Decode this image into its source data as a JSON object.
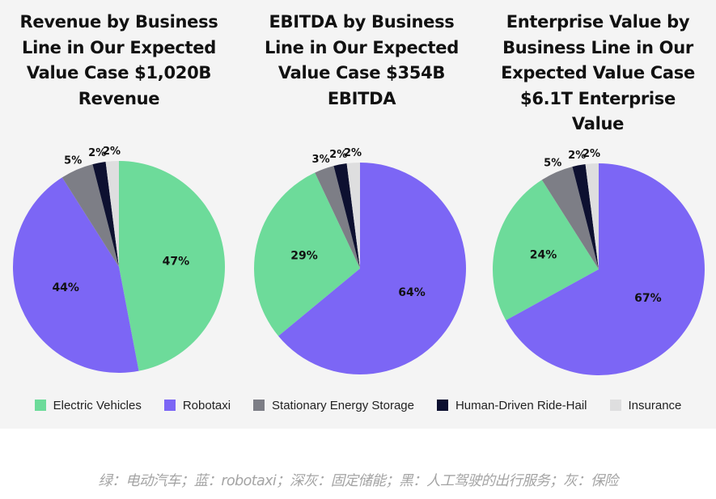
{
  "chart_data": [
    {
      "type": "pie",
      "title": "Revenue by Business Line in Our Expected Value Case $1,020B Revenue",
      "title_lines": [
        "Revenue by Business",
        "Line in Our Expected",
        "Value Case $1,020B",
        "Revenue"
      ],
      "labels": [
        "Electric Vehicles",
        "Robotaxi",
        "Stationary Energy Storage",
        "Human-Driven Ride-Hail",
        "Insurance"
      ],
      "values": [
        47,
        44,
        5,
        2,
        2
      ],
      "value_labels": [
        "47%",
        "44%",
        "5%",
        "2%",
        "2%"
      ]
    },
    {
      "type": "pie",
      "title": "EBITDA by Business Line in Our Expected Value Case $354B EBITDA",
      "title_lines": [
        "EBITDA by Business",
        "Line in Our Expected",
        "Value Case $354B",
        "EBITDA"
      ],
      "labels": [
        "Electric Vehicles",
        "Robotaxi",
        "Stationary Energy Storage",
        "Human-Driven Ride-Hail",
        "Insurance"
      ],
      "values": [
        29,
        64,
        3,
        2,
        2
      ],
      "value_labels": [
        "29%",
        "64%",
        "3%",
        "2%",
        "2%"
      ]
    },
    {
      "type": "pie",
      "title": "Enterprise Value by Business Line in Our Expected Value Case $6.1T Enterprise Value",
      "title_lines": [
        "Enterprise Value by",
        "Business Line in Our",
        "Expected Value Case",
        "$6.1T Enterprise Value"
      ],
      "labels": [
        "Electric Vehicles",
        "Robotaxi",
        "Stationary Energy Storage",
        "Human-Driven Ride-Hail",
        "Insurance"
      ],
      "values": [
        24,
        67,
        5,
        2,
        2
      ],
      "value_labels": [
        "24%",
        "67%",
        "5%",
        "2%",
        "2%"
      ]
    }
  ],
  "legend": [
    {
      "label": "Electric Vehicles",
      "color": "#6ddb9a"
    },
    {
      "label": "Robotaxi",
      "color": "#7c66f5"
    },
    {
      "label": "Stationary Energy Storage",
      "color": "#7d7e86"
    },
    {
      "label": "Human-Driven Ride-Hail",
      "color": "#0d1030"
    },
    {
      "label": "Insurance",
      "color": "#dededf"
    }
  ],
  "caption": "绿：电动汽车；蓝：robotaxi；深灰：固定储能；黑：人工驾驶的出行服务；灰：保险"
}
